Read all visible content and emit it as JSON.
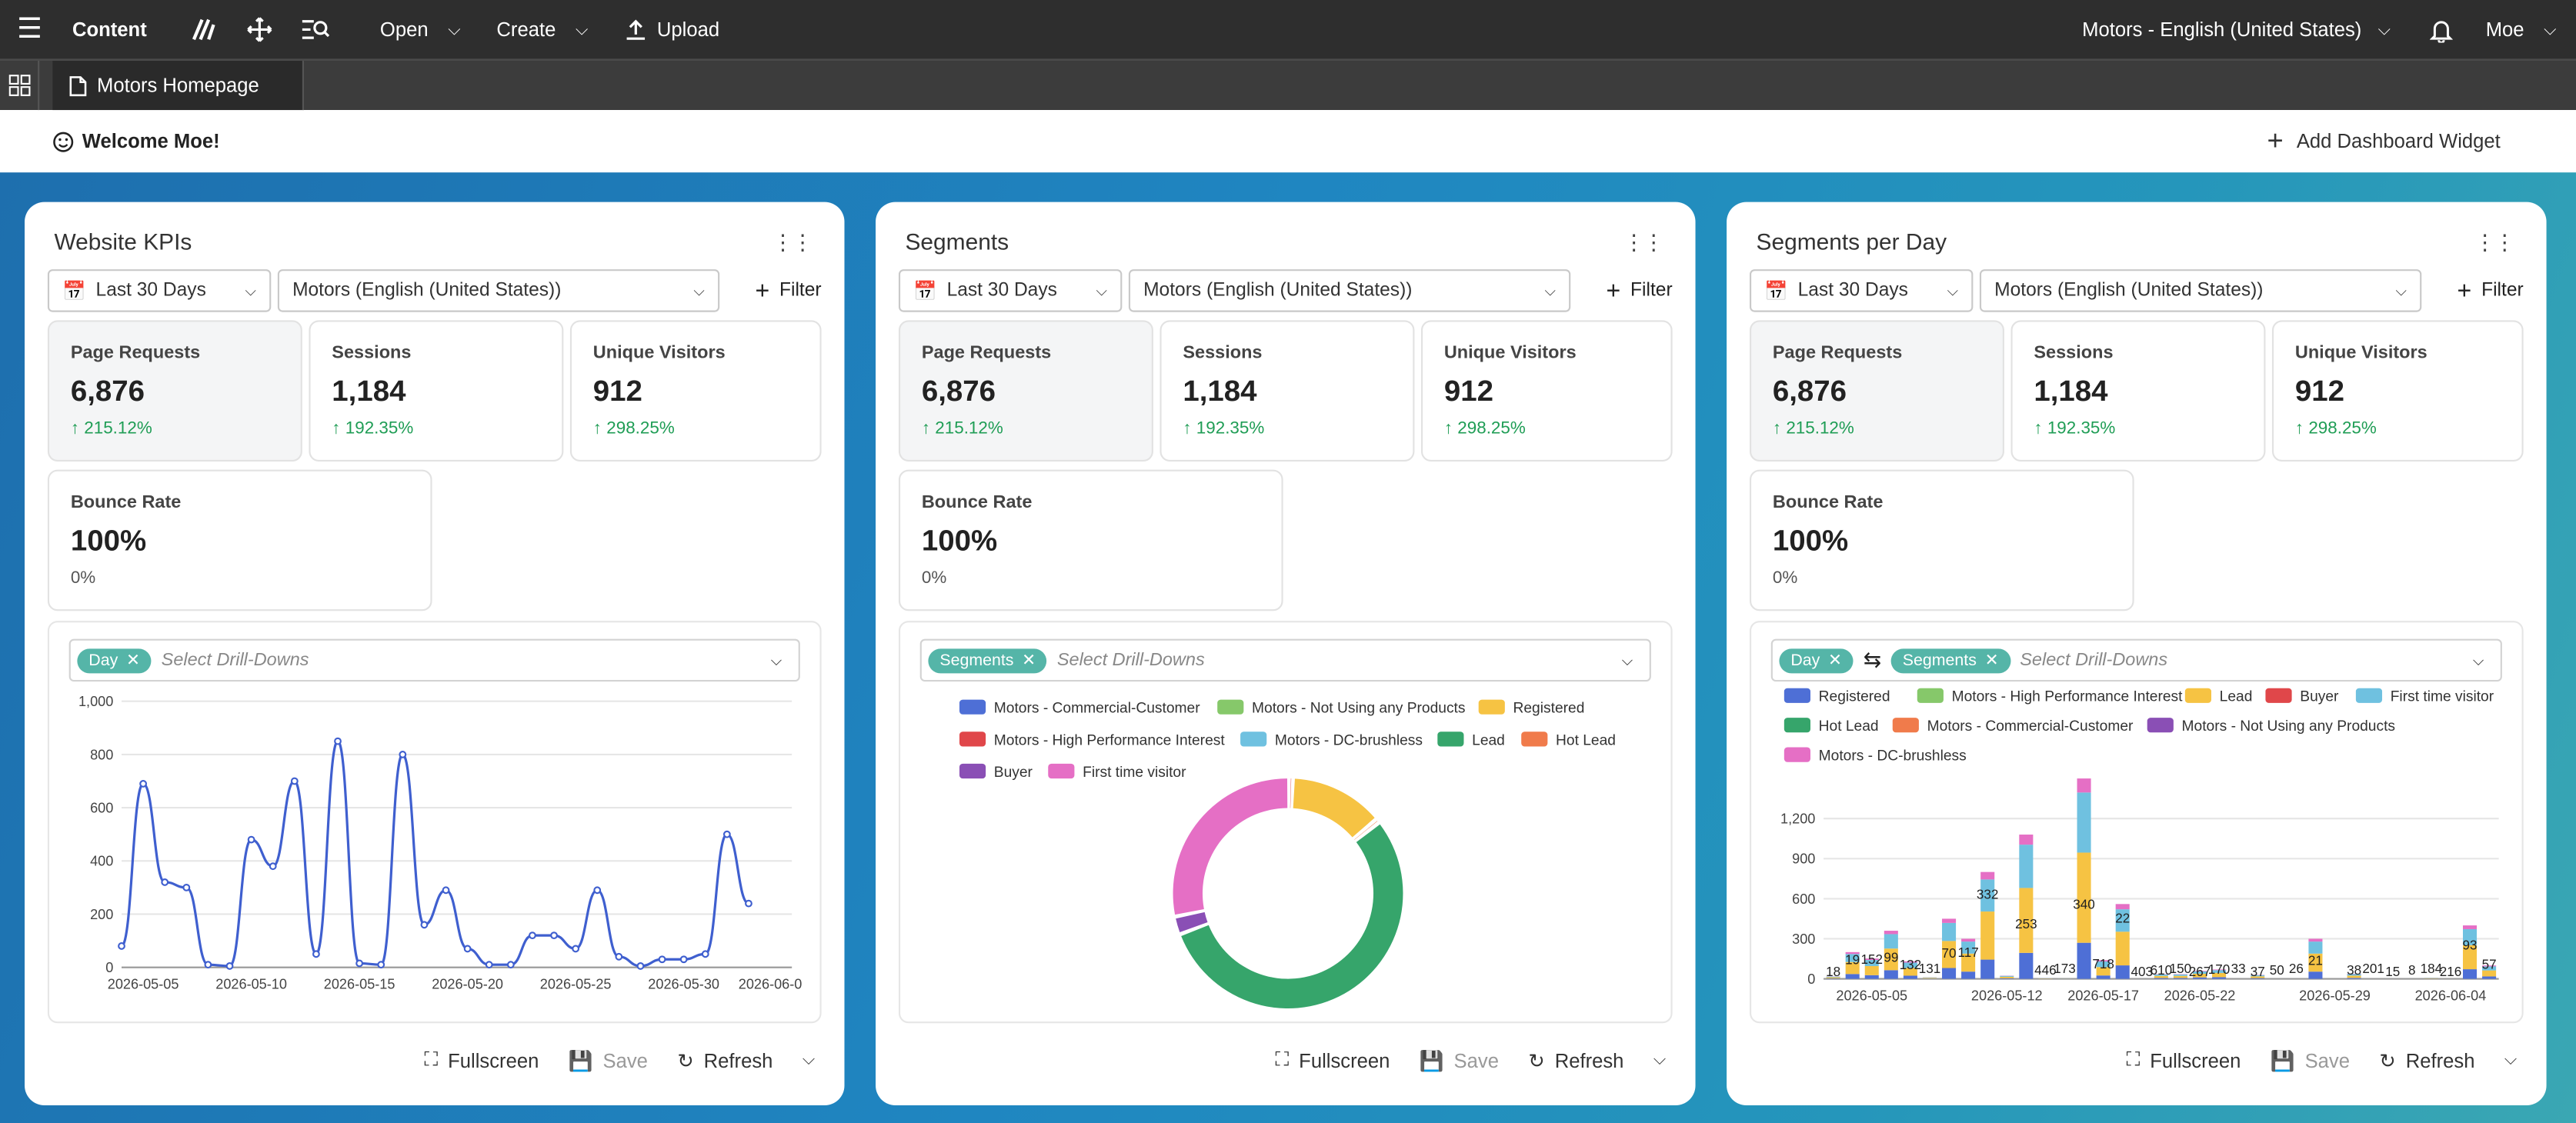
{
  "topbar": {
    "brand": "Content",
    "open": "Open",
    "create": "Create",
    "upload": "Upload",
    "site": "Motors - English (United States)",
    "user": "Moe"
  },
  "tabbar": {
    "tab": "Motors Homepage"
  },
  "welcome": {
    "text": "Welcome Moe!",
    "add_widget": "Add Dashboard Widget"
  },
  "common": {
    "date_range": "Last 30 Days",
    "site_select": "Motors (English (United States))",
    "filter": "Filter",
    "fullscreen": "Fullscreen",
    "save": "Save",
    "refresh": "Refresh",
    "drill_placeholder": "Select Drill-Downs"
  },
  "kpis": {
    "page_requests": {
      "label": "Page Requests",
      "value": "6,876",
      "change": "215.12%"
    },
    "sessions": {
      "label": "Sessions",
      "value": "1,184",
      "change": "192.35%"
    },
    "unique_visitors": {
      "label": "Unique Visitors",
      "value": "912",
      "change": "298.25%"
    },
    "bounce_rate": {
      "label": "Bounce Rate",
      "value": "100%",
      "change": "0%"
    }
  },
  "widgets": [
    {
      "title": "Website KPIs",
      "chips": [
        "Day"
      ]
    },
    {
      "title": "Segments",
      "chips": [
        "Segments"
      ]
    },
    {
      "title": "Segments per Day",
      "chips": [
        "Day",
        "Segments"
      ]
    }
  ],
  "colors": {
    "accent_chip": "#55b5a8",
    "positive": "#1f9d55",
    "line": "#3f5fcf"
  },
  "chart_data": [
    {
      "type": "line",
      "x": [
        "2026-05-04",
        "2026-05-05",
        "2026-05-06",
        "2026-05-07",
        "2026-05-08",
        "2026-05-09",
        "2026-05-10",
        "2026-05-11",
        "2026-05-12",
        "2026-05-13",
        "2026-05-14",
        "2026-05-15",
        "2026-05-16",
        "2026-05-17",
        "2026-05-18",
        "2026-05-19",
        "2026-05-20",
        "2026-05-21",
        "2026-05-22",
        "2026-05-23",
        "2026-05-24",
        "2026-05-25",
        "2026-05-26",
        "2026-05-27",
        "2026-05-28",
        "2026-05-29",
        "2026-05-30",
        "2026-05-31",
        "2026-06-01",
        "2026-06-02",
        "2026-06-03",
        "2026-06-04"
      ],
      "values": [
        80,
        690,
        320,
        300,
        10,
        5,
        480,
        380,
        700,
        50,
        850,
        15,
        10,
        800,
        160,
        290,
        70,
        10,
        10,
        120,
        120,
        70,
        290,
        40,
        5,
        30,
        30,
        50,
        500,
        240,
        0,
        0
      ],
      "xticks": [
        "2026-05-05",
        "2026-05-10",
        "2026-05-15",
        "2026-05-20",
        "2026-05-25",
        "2026-05-30",
        "2026-06-0"
      ],
      "yticks": [
        "0",
        "200",
        "400",
        "600",
        "800",
        "1,000"
      ],
      "ylim": [
        0,
        1000
      ],
      "grid": true
    },
    {
      "type": "pie",
      "legend": [
        "Motors - Commercial-Customer",
        "Motors - Not Using any Products",
        "Registered",
        "Motors - High Performance Interest",
        "Motors - DC-brushless",
        "Lead",
        "Hot Lead",
        "Buyer",
        "First time visitor"
      ],
      "legend_colors": [
        "#4e6fd6",
        "#86c86a",
        "#f6c343",
        "#e0474a",
        "#6fc1e0",
        "#36a56b",
        "#f07b4b",
        "#8a4fb5",
        "#e56fc5"
      ],
      "slices": [
        {
          "label": "Registered",
          "value": 13,
          "color": "#f6c343"
        },
        {
          "label": "Hot Lead",
          "value": 0.6,
          "color": "#f07b4b"
        },
        {
          "label": "Lead",
          "value": 54,
          "color": "#36a56b"
        },
        {
          "label": "Buyer",
          "value": 2.5,
          "color": "#8a4fb5"
        },
        {
          "label": "First time visitor",
          "value": 28,
          "color": "#e56fc5"
        },
        {
          "label": "Motors - High Performance Interest",
          "value": 0.5,
          "color": "#e0474a"
        }
      ]
    },
    {
      "type": "bar",
      "stacked": true,
      "legend": [
        "Registered",
        "Motors - High Performance Interest",
        "Lead",
        "Buyer",
        "First time visitor",
        "Hot Lead",
        "Motors - Commercial-Customer",
        "Motors - Not Using any Products",
        "Motors - DC-brushless"
      ],
      "legend_colors": [
        "#4e6fd6",
        "#86c86a",
        "#f6c343",
        "#e0474a",
        "#6fc1e0",
        "#36a56b",
        "#f07b4b",
        "#8a4fb5",
        "#e56fc5"
      ],
      "xticks": [
        "2026-05-05",
        "2026-05-12",
        "2026-05-17",
        "2026-05-22",
        "2026-05-29",
        "2026-06-04"
      ],
      "yticks": [
        "0",
        "300",
        "600",
        "900",
        "1,200"
      ],
      "ylim": [
        0,
        1500
      ],
      "totals": [
        18,
        200,
        152,
        360,
        131,
        12,
        450,
        300,
        800,
        24,
        1080,
        5,
        3,
        1500,
        140,
        560,
        0,
        35,
        35,
        60,
        70,
        0,
        30,
        0,
        0,
        300,
        0,
        38,
        0,
        0,
        0,
        8,
        0,
        400,
        100
      ],
      "labels": [
        "18",
        "19",
        "152",
        "99",
        "132",
        "131",
        "70",
        "117",
        "332",
        "253",
        "446",
        "173",
        "340",
        "718",
        "22",
        "403",
        "610",
        "150",
        "267",
        "170",
        "33",
        "37",
        "50",
        "26",
        "21",
        "38",
        "201",
        "15",
        "8",
        "184",
        "216",
        "93",
        "57"
      ]
    }
  ]
}
